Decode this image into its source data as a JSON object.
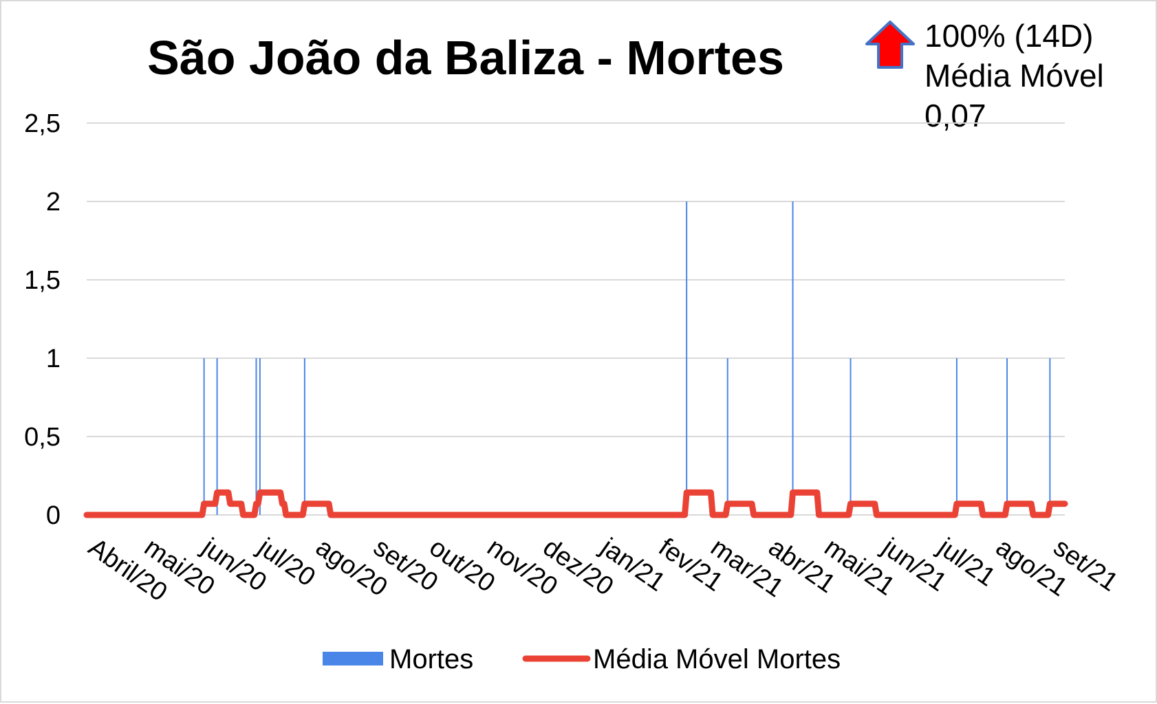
{
  "chart_data": {
    "type": "bar+line",
    "title": "São João da Baliza - Mortes",
    "annotation": {
      "lines": [
        "100% (14D)",
        "Média Móvel",
        "0,07"
      ],
      "arrow": "up-arrow",
      "arrow_color": "#ff0000",
      "arrow_border": "#4472c4"
    },
    "y_axis": {
      "min": 0,
      "max": 2.5,
      "ticks": [
        {
          "value": 0,
          "label": "0"
        },
        {
          "value": 0.5,
          "label": "0,5"
        },
        {
          "value": 1,
          "label": "1"
        },
        {
          "value": 1.5,
          "label": "1,5"
        },
        {
          "value": 2,
          "label": "2"
        },
        {
          "value": 2.5,
          "label": "2,5"
        }
      ],
      "grid": true
    },
    "x_axis": {
      "start": "2020-04-01",
      "end": "2021-09-08",
      "tick_labels": [
        {
          "date": "2020-04-01",
          "label": "Abril/20"
        },
        {
          "date": "2020-05-01",
          "label": "mai/20"
        },
        {
          "date": "2020-06-01",
          "label": "jun/20"
        },
        {
          "date": "2020-07-01",
          "label": "jul/20"
        },
        {
          "date": "2020-08-01",
          "label": "ago/20"
        },
        {
          "date": "2020-09-01",
          "label": "set/20"
        },
        {
          "date": "2020-10-01",
          "label": "out/20"
        },
        {
          "date": "2020-11-01",
          "label": "nov/20"
        },
        {
          "date": "2020-12-01",
          "label": "dez/20"
        },
        {
          "date": "2021-01-01",
          "label": "jan/21"
        },
        {
          "date": "2021-02-01",
          "label": "fev/21"
        },
        {
          "date": "2021-03-01",
          "label": "mar/21"
        },
        {
          "date": "2021-04-01",
          "label": "abr/21"
        },
        {
          "date": "2021-05-01",
          "label": "mai/21"
        },
        {
          "date": "2021-06-01",
          "label": "jun/21"
        },
        {
          "date": "2021-07-01",
          "label": "jul/21"
        },
        {
          "date": "2021-08-01",
          "label": "ago/21"
        },
        {
          "date": "2021-09-01",
          "label": "set/21"
        }
      ]
    },
    "series": [
      {
        "name": "Mortes",
        "type": "bar",
        "color": "#4a86e8",
        "points": [
          {
            "date": "2020-06-03",
            "value": 1
          },
          {
            "date": "2020-06-10",
            "value": 1
          },
          {
            "date": "2020-07-01",
            "value": 1
          },
          {
            "date": "2020-07-03",
            "value": 1
          },
          {
            "date": "2020-07-27",
            "value": 1
          },
          {
            "date": "2021-02-17",
            "value": 2
          },
          {
            "date": "2021-03-11",
            "value": 1
          },
          {
            "date": "2021-04-15",
            "value": 2
          },
          {
            "date": "2021-05-16",
            "value": 1
          },
          {
            "date": "2021-07-12",
            "value": 1
          },
          {
            "date": "2021-08-08",
            "value": 1
          },
          {
            "date": "2021-08-31",
            "value": 1
          }
        ]
      },
      {
        "name": "Média Móvel Mortes",
        "type": "line",
        "color": "#ea4335",
        "window_days": 14
      }
    ],
    "legend": {
      "position": "bottom",
      "entries": [
        "Mortes",
        "Média Móvel Mortes"
      ]
    }
  }
}
